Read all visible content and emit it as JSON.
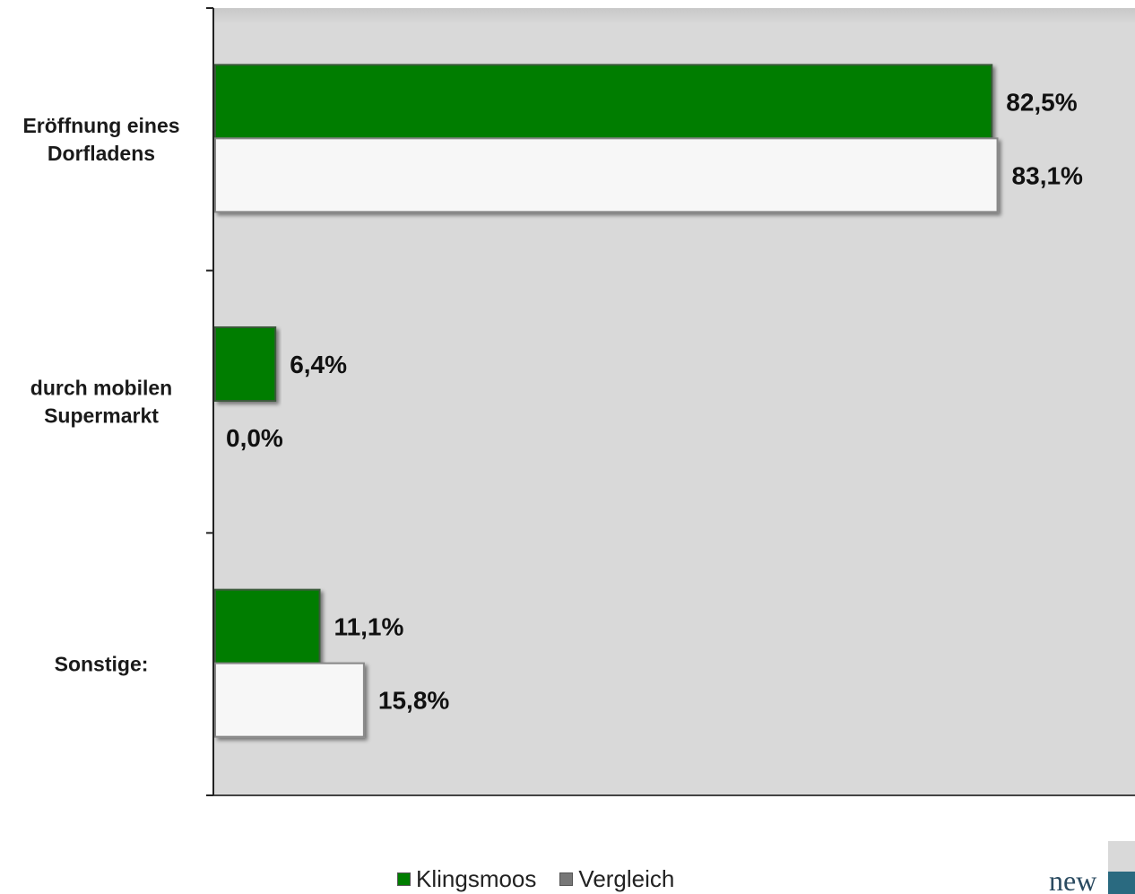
{
  "chart_data": {
    "type": "bar",
    "orientation": "horizontal",
    "categories": [
      "Eröffnung eines Dorfladens",
      "durch mobilen Supermarkt",
      "Sonstige:"
    ],
    "category_lines": [
      [
        "Eröffnung eines",
        "Dorfladens"
      ],
      [
        "durch mobilen",
        "Supermarkt"
      ],
      [
        "Sonstige:"
      ]
    ],
    "series": [
      {
        "name": "Klingsmoos",
        "color": "#007d00",
        "values": [
          82.5,
          6.4,
          11.1
        ],
        "labels": [
          "82,5%",
          "6,4%",
          "11,1%"
        ]
      },
      {
        "name": "Vergleich",
        "color": "#f7f7f7",
        "values": [
          83.1,
          0.0,
          15.8
        ],
        "labels": [
          "83,1%",
          "0,0%",
          "15,8%"
        ]
      }
    ],
    "xlim": [
      0,
      100
    ],
    "unit": "%",
    "grid": false,
    "legend": "bottom-center",
    "plot_background": "#d9d9d9"
  },
  "legend_swatch_colors": [
    "#007d00",
    "#777777"
  ],
  "logo": {
    "text": "new",
    "mark_icon": "logo-mark-icon"
  }
}
